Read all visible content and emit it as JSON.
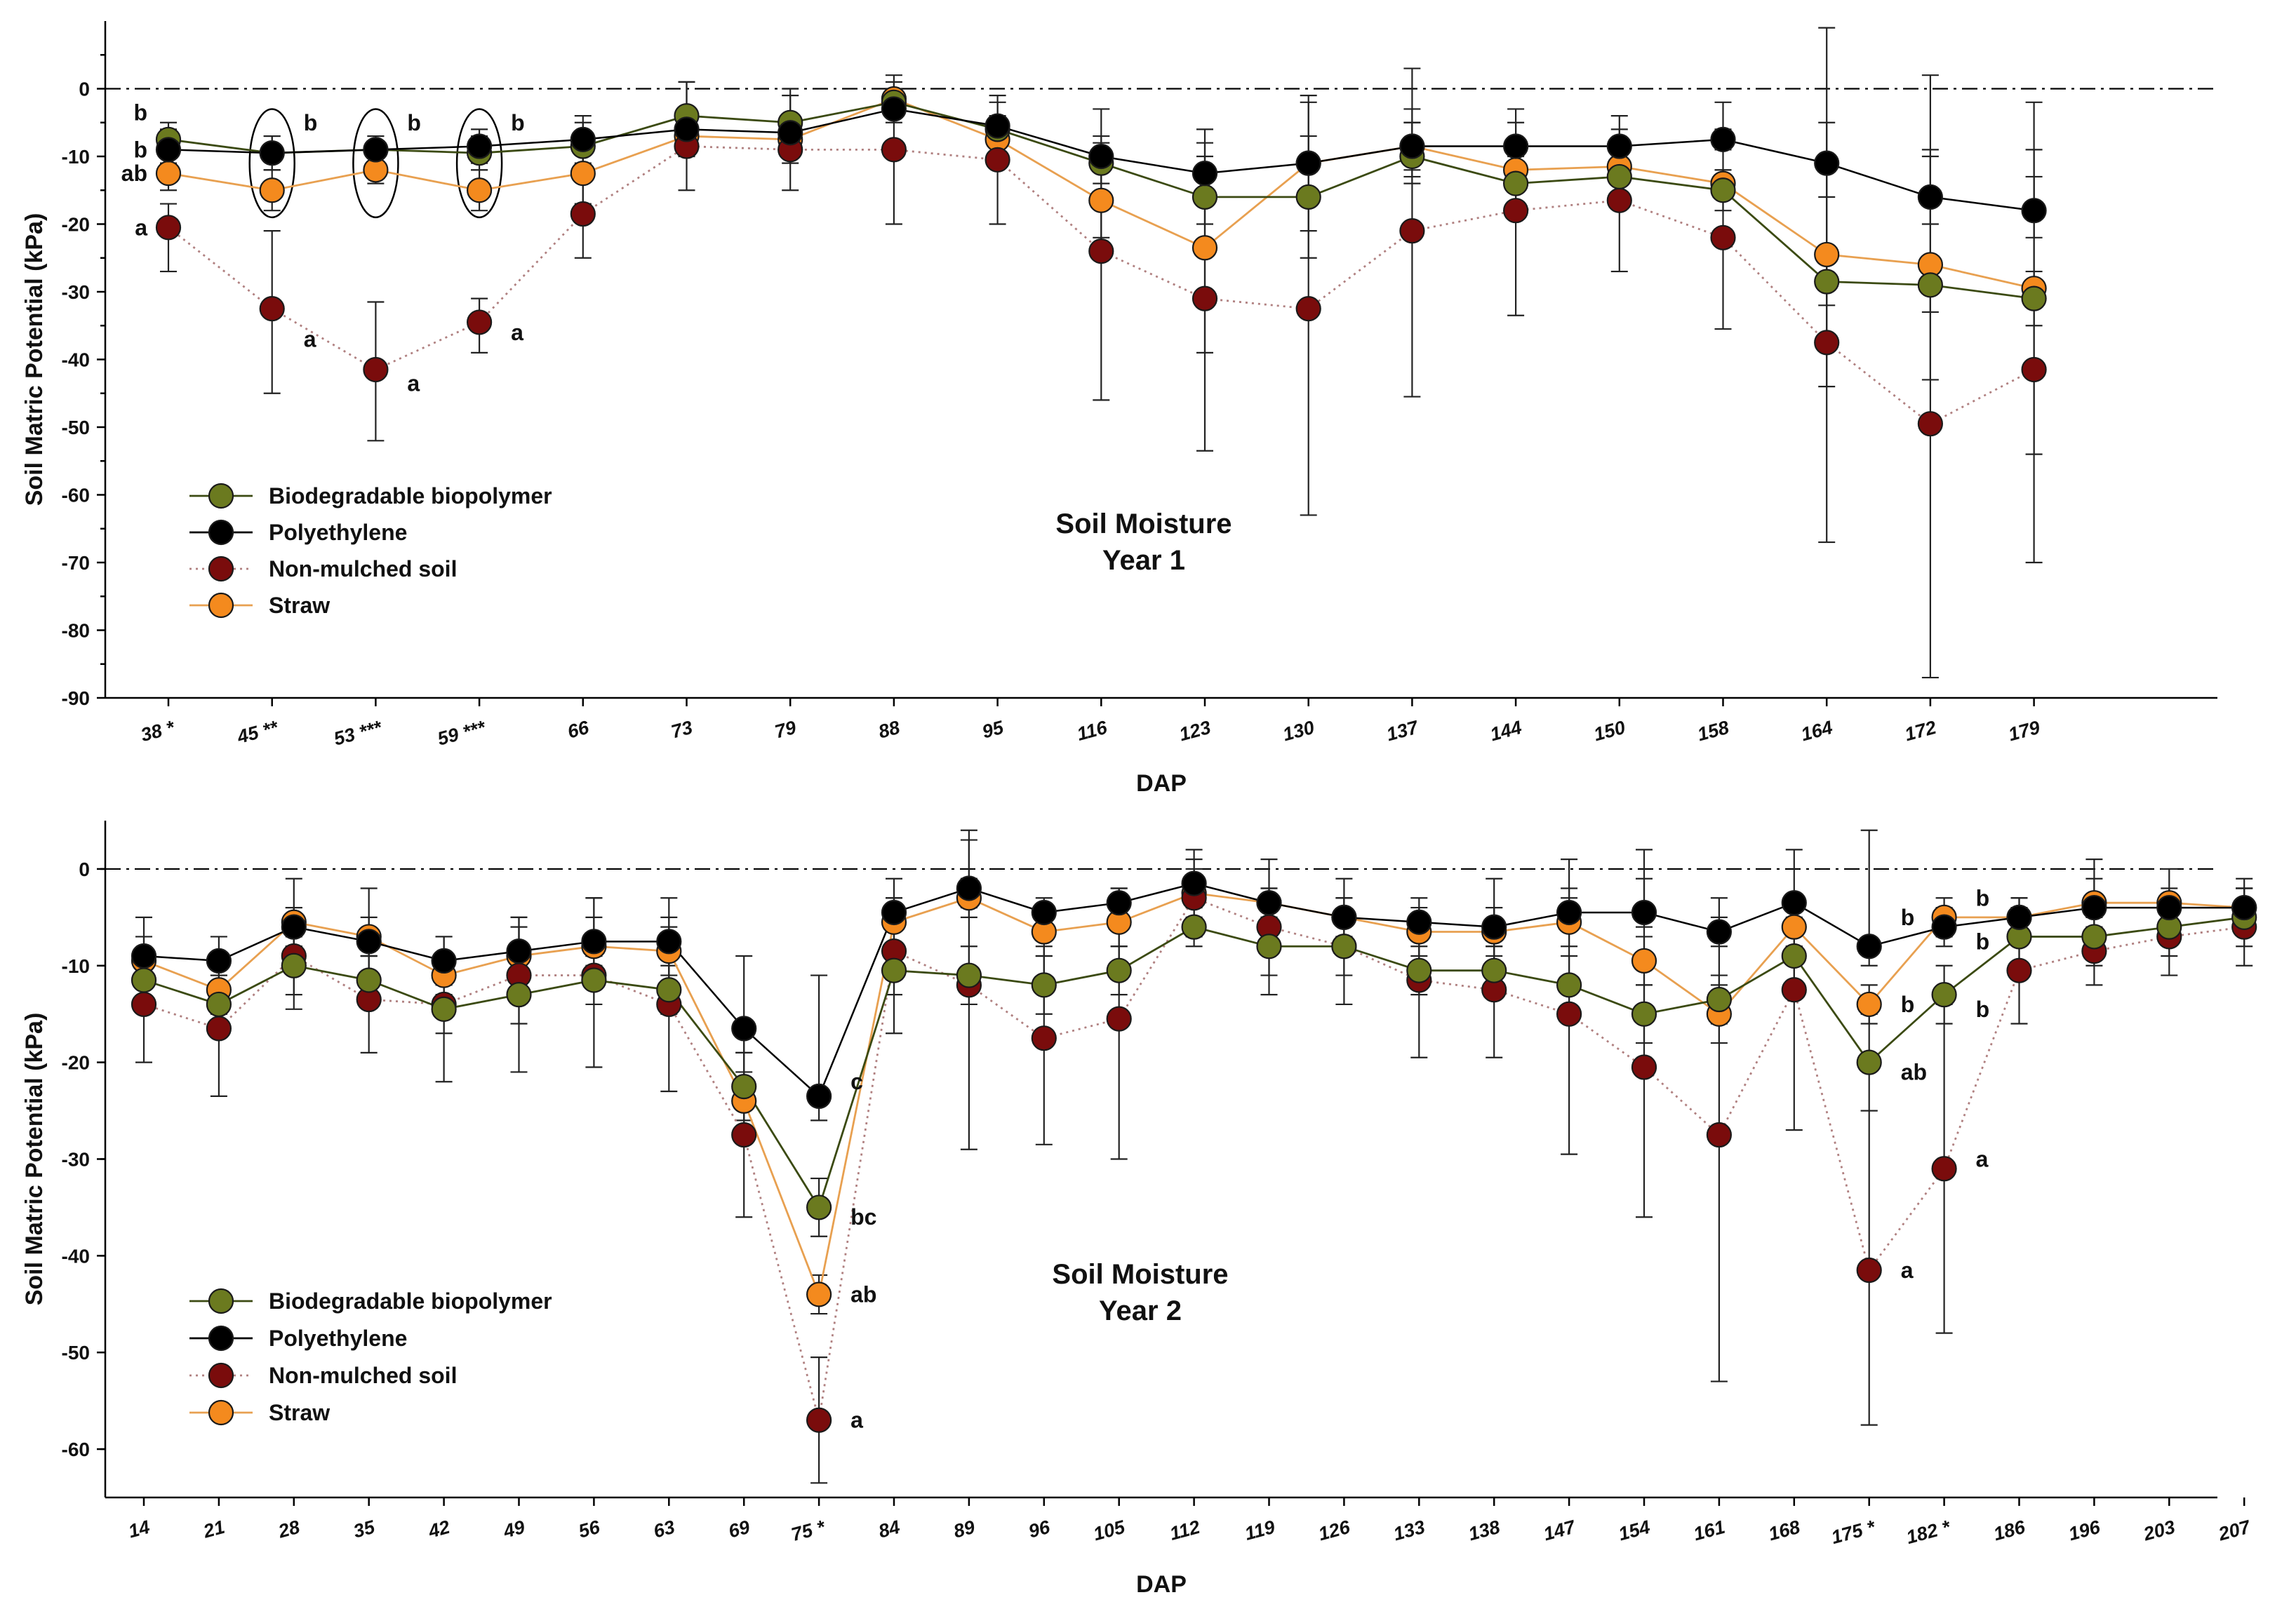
{
  "colors": {
    "Biodegradable biopolymer": "#6b7a1f",
    "Polyethylene": "#000000",
    "Non-mulched soil": "#7a0c0c",
    "Straw": "#f48a1e",
    "line_Biodegradable biopolymer": "#3b4a12",
    "line_Polyethylene": "#000000",
    "line_Non-mulched soil": "#b08080",
    "line_Straw": "#e8a050"
  },
  "chart_data": [
    {
      "type": "line",
      "title": "Soil Moisture",
      "subtitle": "Year 1",
      "xlabel": "DAP",
      "ylabel": "Soil Matric Potential (kPa)",
      "ylim": [
        -90,
        10
      ],
      "yticks": [
        0,
        -10,
        -20,
        -30,
        -40,
        -50,
        -60,
        -70,
        -80,
        -90
      ],
      "reference_line": 0,
      "categories": [
        "38 *",
        "45 **",
        "53 ***",
        "59 ***",
        "66",
        "73",
        "79",
        "88",
        "95",
        "116",
        "123",
        "130",
        "137",
        "144",
        "150",
        "158",
        "164",
        "172",
        "179"
      ],
      "series": [
        {
          "name": "Biodegradable biopolymer",
          "values": [
            -7.5,
            -9.5,
            -9,
            -9.5,
            -8.5,
            -4,
            -5,
            -2,
            -6,
            -11,
            -16,
            -16,
            -10,
            -14,
            -13,
            -15,
            -28.5,
            -29,
            -31
          ],
          "err_low": [
            -11,
            -12,
            -11,
            -12,
            -12,
            -7,
            -9,
            -4,
            -10,
            -14,
            -20,
            -21,
            -14,
            -18,
            -17,
            -18,
            -32,
            -33,
            -35
          ],
          "err_high": [
            -5,
            -7,
            -7,
            -7,
            -5,
            1,
            -1,
            1,
            -2,
            -7,
            -12,
            -10,
            -5,
            -10,
            -9,
            -12,
            -25,
            -25,
            -27
          ]
        },
        {
          "name": "Polyethylene",
          "values": [
            -9,
            -9.5,
            -9,
            -8.5,
            -7.5,
            -6,
            -6.5,
            -3,
            -5.5,
            -10,
            -12.5,
            -11,
            -8.5,
            -8.5,
            -8.5,
            -7.5,
            -11,
            -16,
            -18
          ],
          "err_low": [
            -12,
            -12,
            -11,
            -11,
            -11,
            -8,
            -8,
            -5,
            -7,
            -12,
            -15,
            -15,
            -12,
            -12,
            -11,
            -9,
            -16,
            -20,
            -22
          ],
          "err_high": [
            -6,
            -7,
            -7,
            -6,
            -4,
            -4,
            -5,
            -1,
            -4,
            -8,
            -10,
            -7,
            -5,
            -5,
            -6,
            -6,
            9,
            -10,
            -13
          ]
        },
        {
          "name": "Non-mulched soil",
          "values": [
            -20.5,
            -32.5,
            -41.5,
            -34.5,
            -18.5,
            -8.5,
            -9,
            -9,
            -10.5,
            -24,
            -31,
            -32.5,
            -21,
            -18,
            -16.5,
            -22,
            -37.5,
            -49.5,
            -41.5
          ],
          "err_low": [
            -27,
            -45,
            -52,
            -39,
            -25,
            -15,
            -15,
            -20,
            -20,
            -46,
            -53.5,
            -63,
            -45.5,
            -33.5,
            -27,
            -35.5,
            -67,
            -87,
            -70
          ],
          "err_high": [
            -17,
            -21,
            -31.5,
            -31,
            -13,
            1,
            0,
            2,
            -1,
            -3,
            -6,
            -2,
            3,
            -3,
            -4,
            -2,
            -5,
            2,
            -2
          ]
        },
        {
          "name": "Straw",
          "values": [
            -12.5,
            -15,
            -12,
            -15,
            -12.5,
            -7,
            -7.5,
            -1.5,
            -7.5,
            -16.5,
            -23.5,
            -11,
            -8.5,
            -12,
            -11.5,
            -14,
            -24.5,
            -26,
            -29.5
          ],
          "err_low": [
            -15,
            -18,
            -14,
            -18,
            -17,
            -10,
            -11,
            -3,
            -10,
            -22,
            -39,
            -25,
            -13,
            -15,
            -14,
            -16,
            -44,
            -43,
            -54
          ],
          "err_high": [
            -10,
            -12,
            -10,
            -12,
            -8,
            -4,
            -4,
            0,
            -5,
            -9,
            -8,
            -1,
            -3,
            -9,
            -9,
            -12,
            -11,
            -9,
            -9
          ]
        }
      ],
      "annotations": [
        {
          "text": "b",
          "category": "38 *",
          "value": -3.5,
          "side": "left"
        },
        {
          "text": "b",
          "category": "38 *",
          "value": -9,
          "side": "left"
        },
        {
          "text": "ab",
          "category": "38 *",
          "value": -12.5,
          "side": "left"
        },
        {
          "text": "a",
          "category": "38 *",
          "value": -20.5,
          "side": "left"
        },
        {
          "text": "b",
          "category": "45 **",
          "value": -5,
          "side": "right"
        },
        {
          "text": "a",
          "category": "45 **",
          "value": -37,
          "side": "right"
        },
        {
          "text": "b",
          "category": "53 ***",
          "value": -5,
          "side": "right"
        },
        {
          "text": "a",
          "category": "53 ***",
          "value": -43.5,
          "side": "right"
        },
        {
          "text": "b",
          "category": "59 ***",
          "value": -5,
          "side": "right"
        },
        {
          "text": "a",
          "category": "59 ***",
          "value": -36,
          "side": "right"
        }
      ],
      "circled_categories": [
        "45 **",
        "53 ***",
        "59 ***"
      ],
      "legend": [
        "Biodegradable biopolymer",
        "Polyethylene",
        "Non-mulched soil",
        "Straw"
      ]
    },
    {
      "type": "line",
      "title": "Soil Moisture",
      "subtitle": "Year 2",
      "xlabel": "DAP",
      "ylabel": "Soil Matric Potential (kPa)",
      "ylim": [
        -65,
        5
      ],
      "yticks": [
        0,
        -10,
        -20,
        -30,
        -40,
        -50,
        -60
      ],
      "reference_line": 0,
      "categories": [
        "14",
        "21",
        "28",
        "35",
        "42",
        "49",
        "56",
        "63",
        "69",
        "75 *",
        "84",
        "89",
        "96",
        "105",
        "112",
        "119",
        "126",
        "133",
        "138",
        "147",
        "154",
        "161",
        "168",
        "175 *",
        "182 *",
        "186",
        "196",
        "203",
        "207"
      ],
      "series": [
        {
          "name": "Biodegradable biopolymer",
          "values": [
            -11.5,
            -14,
            -10,
            -11.5,
            -14.5,
            -13,
            -11.5,
            -12.5,
            -22.5,
            -35,
            -10.5,
            -11,
            -12,
            -10.5,
            -6,
            -8,
            -8,
            -10.5,
            -10.5,
            -12,
            -15,
            -13.5,
            -9,
            -20,
            -13,
            -7,
            -7,
            -6,
            -5
          ],
          "err_low": [
            -14,
            -17,
            -13,
            -14,
            -17,
            -16,
            -14,
            -15,
            -26,
            -38,
            -13,
            -14,
            -15,
            -13,
            -8,
            -11,
            -11,
            -13,
            -13,
            -15,
            -18,
            -16,
            -12,
            -25,
            -16,
            -10,
            -10,
            -9,
            -8
          ],
          "err_high": [
            -9,
            -11,
            -7,
            -9,
            -12,
            -10,
            -9,
            -10,
            -19,
            -32,
            -8,
            -8,
            -9,
            -8,
            -4,
            -5,
            -5,
            -8,
            -8,
            -9,
            -12,
            -11,
            -6,
            -15,
            -10,
            -4,
            -4,
            -3,
            -2
          ]
        },
        {
          "name": "Polyethylene",
          "values": [
            -9,
            -9.5,
            -6,
            -7.5,
            -9.5,
            -8.5,
            -7.5,
            -7.5,
            -16.5,
            -23.5,
            -4.5,
            -2,
            -4.5,
            -3.5,
            -1.5,
            -3.5,
            -5,
            -5.5,
            -6,
            -4.5,
            -4.5,
            -6.5,
            -3.5,
            -8,
            -6,
            -5,
            -4,
            -4,
            -4
          ],
          "err_low": [
            -11,
            -11,
            -8,
            -9,
            -11,
            -10,
            -9,
            -9,
            -19,
            -26,
            -6,
            -4,
            -6,
            -5,
            -3,
            -5,
            -7,
            -7,
            -8,
            -6,
            -6,
            -8,
            -5,
            -10,
            -8,
            -7,
            -6,
            -6,
            -6
          ],
          "err_high": [
            -5,
            -7,
            -4,
            -5,
            -7,
            -6,
            -5,
            -6,
            -9,
            -11,
            -3,
            4,
            -3,
            -2,
            2,
            -2,
            -3,
            -3,
            -1,
            -2,
            2,
            -5,
            2,
            4,
            -4,
            -3,
            -1,
            -2,
            -2
          ]
        },
        {
          "name": "Non-mulched soil",
          "values": [
            -14,
            -16.5,
            -9,
            -13.5,
            -14,
            -11,
            -11,
            -14,
            -27.5,
            -57,
            -8.5,
            -12,
            -17.5,
            -15.5,
            -3,
            -6,
            -8,
            -11.5,
            -12.5,
            -15,
            -20.5,
            -27.5,
            -12.5,
            -41.5,
            -31,
            -10.5,
            -8.5,
            -7,
            -6
          ],
          "err_low": [
            -20,
            -23.5,
            -14.5,
            -19,
            -22,
            -21,
            -20.5,
            -23,
            -36,
            -63.5,
            -17,
            -29,
            -28.5,
            -30,
            -7,
            -13,
            -14,
            -19.5,
            -19.5,
            -29.5,
            -36,
            -53,
            -27,
            -57.5,
            -48,
            -16,
            -12,
            -11,
            -10
          ],
          "err_high": [
            -9,
            -12,
            -4,
            -8,
            -9,
            -5,
            -3,
            -5,
            -16,
            -50.5,
            -1,
            3,
            -8,
            -2,
            1,
            -2,
            -3,
            -6,
            -4,
            1,
            -1,
            -3,
            -8,
            -25,
            -14,
            -5,
            -3,
            -3,
            -2
          ]
        },
        {
          "name": "Straw",
          "values": [
            -9.5,
            -12.5,
            -5.5,
            -7,
            -11,
            -9,
            -8,
            -8.5,
            -24,
            -44,
            -5.5,
            -3,
            -6.5,
            -5.5,
            -2.5,
            -3.5,
            -5,
            -6.5,
            -6.5,
            -5.5,
            -9.5,
            -15,
            -6,
            -14,
            -5,
            -5,
            -3.5,
            -3.5,
            -4
          ],
          "err_low": [
            -12,
            -15,
            -8,
            -9,
            -13,
            -11,
            -10,
            -11,
            -27,
            -46,
            -8,
            -5,
            -9,
            -8,
            -5,
            -6,
            -7,
            -9,
            -9,
            -8,
            -12,
            -18,
            -8,
            -16,
            -7,
            -7,
            -5,
            -5,
            -6
          ],
          "err_high": [
            -7,
            -10,
            -1,
            -2,
            -7,
            -5,
            -3,
            -3,
            -21,
            -42,
            -3,
            -1,
            -4,
            -3,
            0,
            1,
            -1,
            -4,
            -4,
            -3,
            -7,
            -12,
            -4,
            -12,
            -3,
            -3,
            1,
            0,
            -1
          ]
        }
      ],
      "annotations": [
        {
          "text": "c",
          "category": "75 *",
          "value": -22,
          "side": "right"
        },
        {
          "text": "bc",
          "category": "75 *",
          "value": -36,
          "side": "right"
        },
        {
          "text": "ab",
          "category": "75 *",
          "value": -44,
          "side": "right"
        },
        {
          "text": "a",
          "category": "75 *",
          "value": -57,
          "side": "right"
        },
        {
          "text": "b",
          "category": "175 *",
          "value": -5,
          "side": "right"
        },
        {
          "text": "b",
          "category": "175 *",
          "value": -14,
          "side": "right"
        },
        {
          "text": "ab",
          "category": "175 *",
          "value": -21,
          "side": "right"
        },
        {
          "text": "a",
          "category": "175 *",
          "value": -41.5,
          "side": "right"
        },
        {
          "text": "b",
          "category": "182 *",
          "value": -3,
          "side": "right"
        },
        {
          "text": "b",
          "category": "182 *",
          "value": -7.5,
          "side": "right"
        },
        {
          "text": "b",
          "category": "182 *",
          "value": -14.5,
          "side": "right"
        },
        {
          "text": "a",
          "category": "182 *",
          "value": -30,
          "side": "right"
        }
      ],
      "legend": [
        "Biodegradable biopolymer",
        "Polyethylene",
        "Non-mulched soil",
        "Straw"
      ]
    }
  ]
}
